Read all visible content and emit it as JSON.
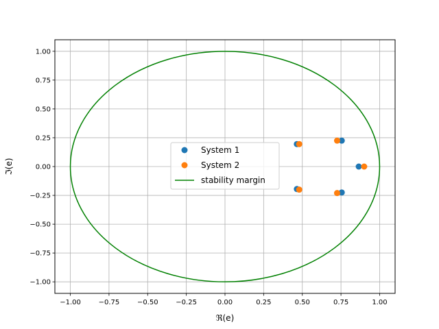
{
  "chart_data": {
    "type": "scatter",
    "title": "",
    "xlabel": "ℜ(e)",
    "ylabel": "ℑ(e)",
    "xlim": [
      -1.1,
      1.1
    ],
    "ylim": [
      -1.1,
      1.1
    ],
    "grid": true,
    "legend_position": "center",
    "xticks": [
      -1.0,
      -0.75,
      -0.5,
      -0.25,
      0.0,
      0.25,
      0.5,
      0.75,
      1.0
    ],
    "xtick_labels": [
      "−1.00",
      "−0.75",
      "−0.50",
      "−0.25",
      "0.00",
      "0.25",
      "0.50",
      "0.75",
      "1.00"
    ],
    "yticks": [
      1.0,
      0.75,
      0.5,
      0.25,
      0.0,
      -0.25,
      -0.5,
      -0.75,
      -1.0
    ],
    "ytick_labels": [
      "1.00",
      "0.75",
      "0.50",
      "0.25",
      "0.00",
      "−0.25",
      "−0.50",
      "−0.75",
      "−1.00"
    ],
    "series": [
      {
        "name": "System 1",
        "kind": "scatter",
        "color": "#1f77b4",
        "points": [
          {
            "x": 0.465,
            "y": 0.195
          },
          {
            "x": 0.465,
            "y": -0.195
          },
          {
            "x": 0.755,
            "y": 0.225
          },
          {
            "x": 0.755,
            "y": -0.225
          },
          {
            "x": 0.865,
            "y": 0.0
          }
        ]
      },
      {
        "name": "System 2",
        "kind": "scatter",
        "color": "#ff7f0e",
        "points": [
          {
            "x": 0.48,
            "y": 0.195
          },
          {
            "x": 0.48,
            "y": -0.2
          },
          {
            "x": 0.725,
            "y": 0.225
          },
          {
            "x": 0.725,
            "y": -0.23
          },
          {
            "x": 0.9,
            "y": 0.0
          }
        ]
      },
      {
        "name": "stability margin",
        "kind": "unit-circle",
        "color": "#008000",
        "center": [
          0,
          0
        ],
        "radius": 1.0
      }
    ]
  }
}
